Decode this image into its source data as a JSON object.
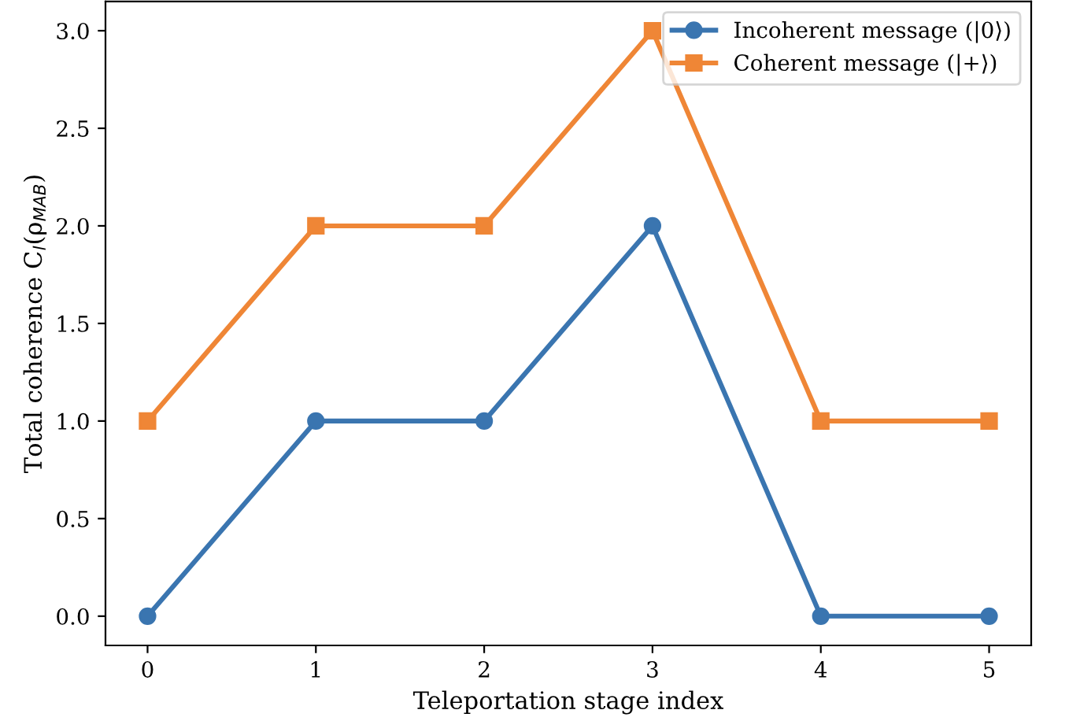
{
  "chart_data": {
    "type": "line",
    "xlabel": "Teleportation stage index",
    "ylabel": "Total coherence C$_{l}$(ρ$_{MAB}$)",
    "x": [
      0,
      1,
      2,
      3,
      4,
      5
    ],
    "series": [
      {
        "name": "Incoherent message (|0⟩)",
        "color": "#3a75b0",
        "values": [
          0,
          1,
          1,
          2,
          0,
          0
        ],
        "marker": "circle"
      },
      {
        "name": "Coherent message (|+⟩)",
        "color": "#ef8636",
        "values": [
          1,
          2,
          2,
          3,
          1,
          1
        ],
        "marker": "square"
      }
    ],
    "xlim": [
      -0.25,
      5.25
    ],
    "ylim": [
      -0.15,
      3.15
    ],
    "xticks": [
      0,
      1,
      2,
      3,
      4,
      5
    ],
    "yticks": [
      {
        "value": 0,
        "label": "0.0"
      },
      {
        "value": 0.5,
        "label": "0.5"
      },
      {
        "value": 1,
        "label": "1.0"
      },
      {
        "value": 1.5,
        "label": "1.5"
      },
      {
        "value": 2,
        "label": "2.0"
      },
      {
        "value": 2.5,
        "label": "2.5"
      },
      {
        "value": 3,
        "label": "3.0"
      }
    ],
    "legend": "top right",
    "grid": false,
    "line_style": "solid"
  }
}
